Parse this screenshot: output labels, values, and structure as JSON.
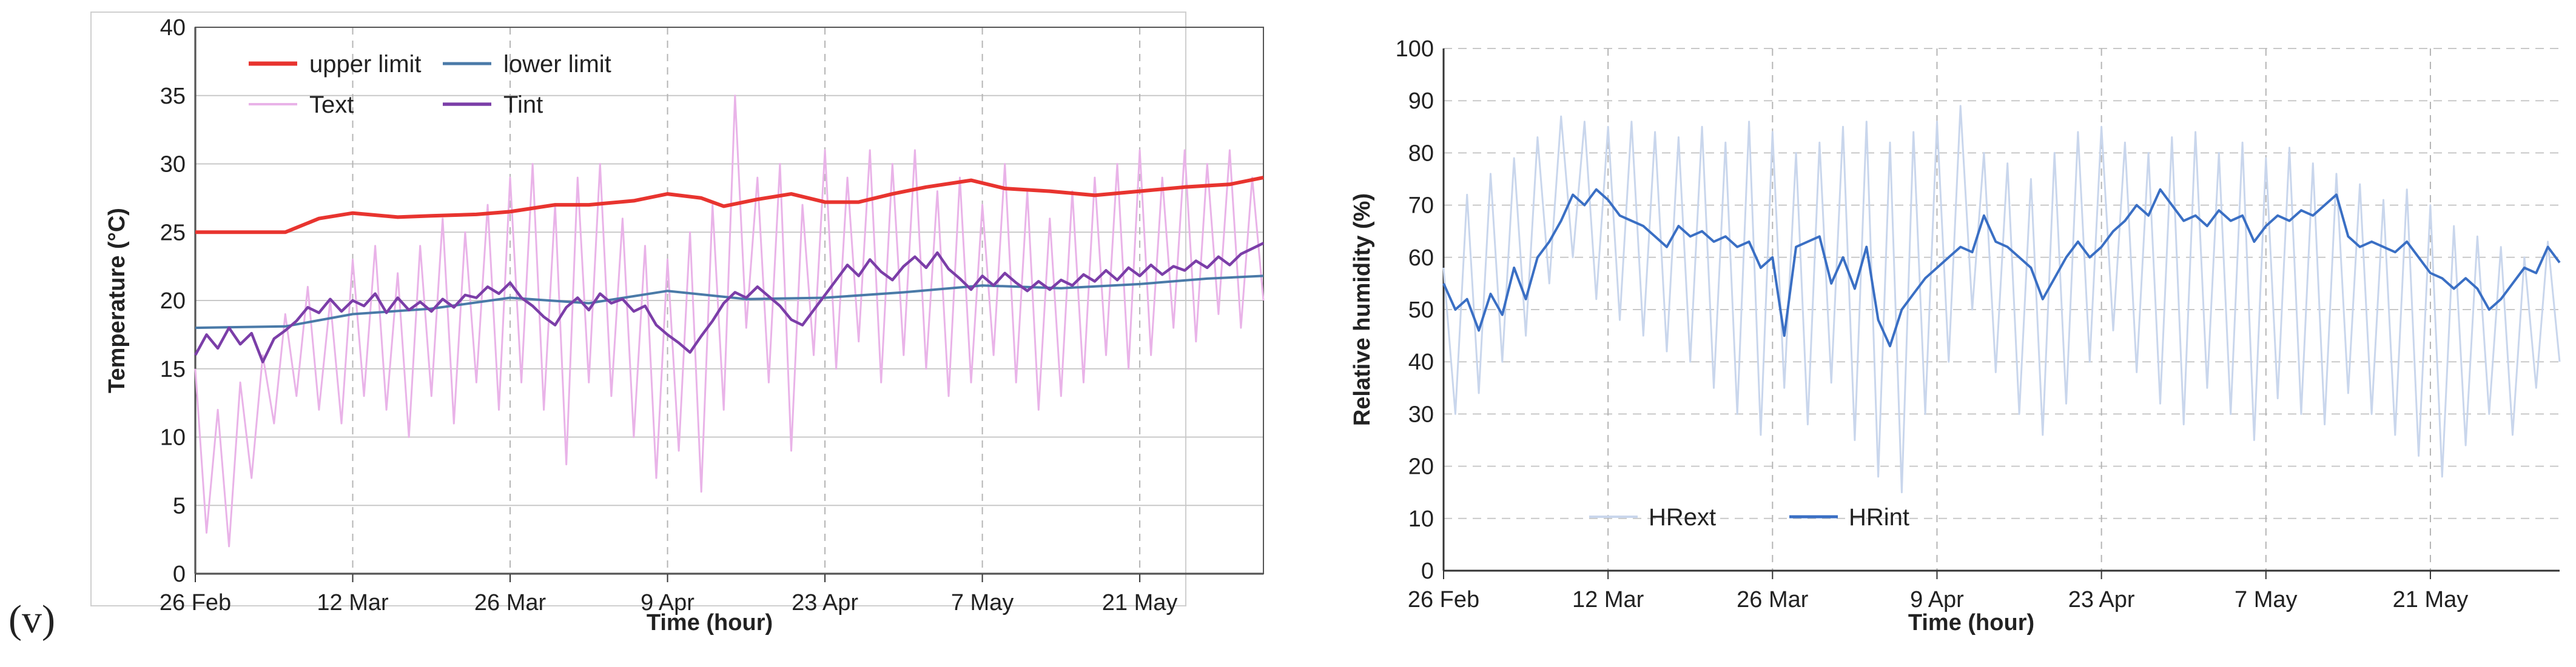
{
  "figure": {
    "panel_label": "(v)"
  },
  "chart_data": [
    {
      "type": "line",
      "title": "",
      "xlabel": "Time (hour)",
      "ylabel": "Temperature (°C)",
      "ylim": [
        0,
        40
      ],
      "yticks": [
        0,
        5,
        10,
        15,
        20,
        25,
        30,
        35,
        40
      ],
      "xlim": [
        0,
        95
      ],
      "xticks": [
        0,
        14,
        28,
        42,
        56,
        70,
        84
      ],
      "xtick_labels": [
        "26 Feb",
        "12 Mar",
        "26 Mar",
        "9 Apr",
        "23 Apr",
        "7 May",
        "21 May"
      ],
      "grid": true,
      "legend": "top-left",
      "series": [
        {
          "name": "upper limit",
          "color": "#e8342f",
          "style": "solid",
          "x": [
            0,
            8,
            11,
            14,
            18,
            21,
            25,
            28,
            32,
            35,
            39,
            42,
            45,
            47,
            50,
            53,
            56,
            59,
            62,
            65,
            69,
            72,
            76,
            80,
            84,
            88,
            92,
            95
          ],
          "y": [
            25,
            25,
            26,
            26.4,
            26.1,
            26.2,
            26.3,
            26.5,
            27,
            27,
            27.3,
            27.8,
            27.5,
            26.9,
            27.4,
            27.8,
            27.2,
            27.2,
            27.8,
            28.3,
            28.8,
            28.2,
            28,
            27.7,
            28,
            28.3,
            28.5,
            29
          ]
        },
        {
          "name": "lower limit",
          "color": "#4a7aa8",
          "style": "solid",
          "x": [
            0,
            8,
            14,
            21,
            28,
            35,
            42,
            49,
            56,
            63,
            70,
            77,
            84,
            90,
            95
          ],
          "y": [
            18,
            18.1,
            19,
            19.4,
            20.2,
            19.8,
            20.7,
            20.1,
            20.2,
            20.6,
            21.1,
            20.9,
            21.2,
            21.6,
            21.8
          ]
        },
        {
          "name": "Text",
          "color": "#e9b3e8",
          "style": "solid",
          "x": [
            0,
            1,
            2,
            3,
            4,
            5,
            6,
            7,
            8,
            9,
            10,
            11,
            12,
            13,
            14,
            15,
            16,
            17,
            18,
            19,
            20,
            21,
            22,
            23,
            24,
            25,
            26,
            27,
            28,
            29,
            30,
            31,
            32,
            33,
            34,
            35,
            36,
            37,
            38,
            39,
            40,
            41,
            42,
            43,
            44,
            45,
            46,
            47,
            48,
            49,
            50,
            51,
            52,
            53,
            54,
            55,
            56,
            57,
            58,
            59,
            60,
            61,
            62,
            63,
            64,
            65,
            66,
            67,
            68,
            69,
            70,
            71,
            72,
            73,
            74,
            75,
            76,
            77,
            78,
            79,
            80,
            81,
            82,
            83,
            84,
            85,
            86,
            87,
            88,
            89,
            90,
            91,
            92,
            93,
            94,
            95
          ],
          "y": [
            15,
            3,
            12,
            2,
            14,
            7,
            16,
            11,
            19,
            13,
            21,
            12,
            20,
            11,
            23,
            13,
            24,
            12,
            22,
            10,
            24,
            13,
            26,
            11,
            25,
            14,
            27,
            12,
            29,
            14,
            30,
            12,
            27,
            8,
            29,
            14,
            30,
            13,
            26,
            10,
            24,
            7,
            23,
            9,
            25,
            6,
            27,
            12,
            35,
            18,
            29,
            14,
            30,
            9,
            27,
            16,
            31,
            15,
            29,
            17,
            31,
            14,
            30,
            16,
            31,
            15,
            28,
            13,
            29,
            14,
            27,
            16,
            30,
            14,
            28,
            12,
            26,
            13,
            28,
            14,
            29,
            16,
            30,
            15,
            31,
            16,
            29,
            18,
            31,
            17,
            30,
            19,
            31,
            18,
            29,
            20
          ]
        },
        {
          "name": "Tint",
          "color": "#7b3ea8",
          "style": "solid",
          "x": [
            0,
            1,
            2,
            3,
            4,
            5,
            6,
            7,
            8,
            9,
            10,
            11,
            12,
            13,
            14,
            15,
            16,
            17,
            18,
            19,
            20,
            21,
            22,
            23,
            24,
            25,
            26,
            27,
            28,
            29,
            30,
            31,
            32,
            33,
            34,
            35,
            36,
            37,
            38,
            39,
            40,
            41,
            42,
            43,
            44,
            45,
            46,
            47,
            48,
            49,
            50,
            51,
            52,
            53,
            54,
            55,
            56,
            57,
            58,
            59,
            60,
            61,
            62,
            63,
            64,
            65,
            66,
            67,
            68,
            69,
            70,
            71,
            72,
            73,
            74,
            75,
            76,
            77,
            78,
            79,
            80,
            81,
            82,
            83,
            84,
            85,
            86,
            87,
            88,
            89,
            90,
            91,
            92,
            93,
            94,
            95
          ],
          "y": [
            16,
            17.5,
            16.5,
            18,
            16.8,
            17.6,
            15.5,
            17.2,
            17.8,
            18.5,
            19.5,
            19.1,
            20.1,
            19.2,
            20,
            19.6,
            20.5,
            19.1,
            20.2,
            19.3,
            19.9,
            19.2,
            20.1,
            19.5,
            20.4,
            20.2,
            21,
            20.5,
            21.3,
            20.2,
            19.6,
            18.8,
            18.2,
            19.5,
            20.2,
            19.3,
            20.5,
            19.8,
            20.1,
            19.2,
            19.6,
            18.2,
            17.5,
            16.9,
            16.2,
            17.4,
            18.5,
            19.8,
            20.6,
            20.2,
            21,
            20.3,
            19.6,
            18.6,
            18.2,
            19.3,
            20.4,
            21.5,
            22.6,
            21.8,
            23,
            22.1,
            21.5,
            22.5,
            23.2,
            22.4,
            23.5,
            22.3,
            21.6,
            20.8,
            21.8,
            21.1,
            22,
            21.3,
            20.7,
            21.4,
            20.8,
            21.5,
            21.1,
            21.9,
            21.4,
            22.2,
            21.5,
            22.4,
            21.8,
            22.6,
            21.9,
            22.5,
            22.2,
            22.9,
            22.4,
            23.2,
            22.6,
            23.4,
            23.8,
            24.2
          ]
        }
      ]
    },
    {
      "type": "line",
      "title": "",
      "xlabel": "Time (hour)",
      "ylabel": "Relative humidity (%)",
      "ylim": [
        0,
        100
      ],
      "yticks": [
        0,
        10,
        20,
        30,
        40,
        50,
        60,
        70,
        80,
        90,
        100
      ],
      "xlim": [
        0,
        95
      ],
      "xticks": [
        0,
        14,
        28,
        42,
        56,
        70,
        84
      ],
      "xtick_labels": [
        "26 Feb",
        "12 Mar",
        "26 Mar",
        "9 Apr",
        "23 Apr",
        "7 May",
        "21 May"
      ],
      "grid": true,
      "legend": "bottom-left",
      "series": [
        {
          "name": "HRext",
          "color": "#c9d6ec",
          "style": "solid",
          "x": [
            0,
            1,
            2,
            3,
            4,
            5,
            6,
            7,
            8,
            9,
            10,
            11,
            12,
            13,
            14,
            15,
            16,
            17,
            18,
            19,
            20,
            21,
            22,
            23,
            24,
            25,
            26,
            27,
            28,
            29,
            30,
            31,
            32,
            33,
            34,
            35,
            36,
            37,
            38,
            39,
            40,
            41,
            42,
            43,
            44,
            45,
            46,
            47,
            48,
            49,
            50,
            51,
            52,
            53,
            54,
            55,
            56,
            57,
            58,
            59,
            60,
            61,
            62,
            63,
            64,
            65,
            66,
            67,
            68,
            69,
            70,
            71,
            72,
            73,
            74,
            75,
            76,
            77,
            78,
            79,
            80,
            81,
            82,
            83,
            84,
            85,
            86,
            87,
            88,
            89,
            90,
            91,
            92,
            93,
            94,
            95
          ],
          "y": [
            58,
            30,
            72,
            34,
            76,
            40,
            79,
            45,
            83,
            55,
            87,
            60,
            86,
            52,
            85,
            48,
            86,
            45,
            84,
            42,
            83,
            40,
            85,
            35,
            82,
            30,
            86,
            26,
            84,
            35,
            80,
            28,
            82,
            36,
            85,
            25,
            86,
            18,
            82,
            15,
            84,
            30,
            86,
            40,
            89,
            50,
            80,
            38,
            78,
            30,
            75,
            26,
            80,
            32,
            84,
            40,
            85,
            46,
            82,
            38,
            80,
            32,
            83,
            28,
            84,
            35,
            80,
            30,
            82,
            25,
            79,
            33,
            81,
            30,
            78,
            28,
            76,
            34,
            74,
            30,
            71,
            26,
            73,
            22,
            70,
            18,
            66,
            24,
            64,
            30,
            62,
            26,
            60,
            35,
            63,
            40
          ]
        },
        {
          "name": "HRint",
          "color": "#3a6fc4",
          "style": "solid",
          "x": [
            0,
            1,
            2,
            3,
            4,
            5,
            6,
            7,
            8,
            9,
            10,
            11,
            12,
            13,
            14,
            15,
            16,
            17,
            18,
            19,
            20,
            21,
            22,
            23,
            24,
            25,
            26,
            27,
            28,
            29,
            30,
            31,
            32,
            33,
            34,
            35,
            36,
            37,
            38,
            39,
            40,
            41,
            42,
            43,
            44,
            45,
            46,
            47,
            48,
            49,
            50,
            51,
            52,
            53,
            54,
            55,
            56,
            57,
            58,
            59,
            60,
            61,
            62,
            63,
            64,
            65,
            66,
            67,
            68,
            69,
            70,
            71,
            72,
            73,
            74,
            75,
            76,
            77,
            78,
            79,
            80,
            81,
            82,
            83,
            84,
            85,
            86,
            87,
            88,
            89,
            90,
            91,
            92,
            93,
            94,
            95
          ],
          "y": [
            55,
            50,
            52,
            46,
            53,
            49,
            58,
            52,
            60,
            63,
            67,
            72,
            70,
            73,
            71,
            68,
            67,
            66,
            64,
            62,
            66,
            64,
            65,
            63,
            64,
            62,
            63,
            58,
            60,
            45,
            62,
            63,
            64,
            55,
            60,
            54,
            62,
            48,
            43,
            50,
            53,
            56,
            58,
            60,
            62,
            61,
            68,
            63,
            62,
            60,
            58,
            52,
            56,
            60,
            63,
            60,
            62,
            65,
            67,
            70,
            68,
            73,
            70,
            67,
            68,
            66,
            69,
            67,
            68,
            63,
            66,
            68,
            67,
            69,
            68,
            70,
            72,
            64,
            62,
            63,
            62,
            61,
            63,
            60,
            57,
            56,
            54,
            56,
            54,
            50,
            52,
            55,
            58,
            57,
            62,
            59
          ]
        }
      ]
    }
  ]
}
